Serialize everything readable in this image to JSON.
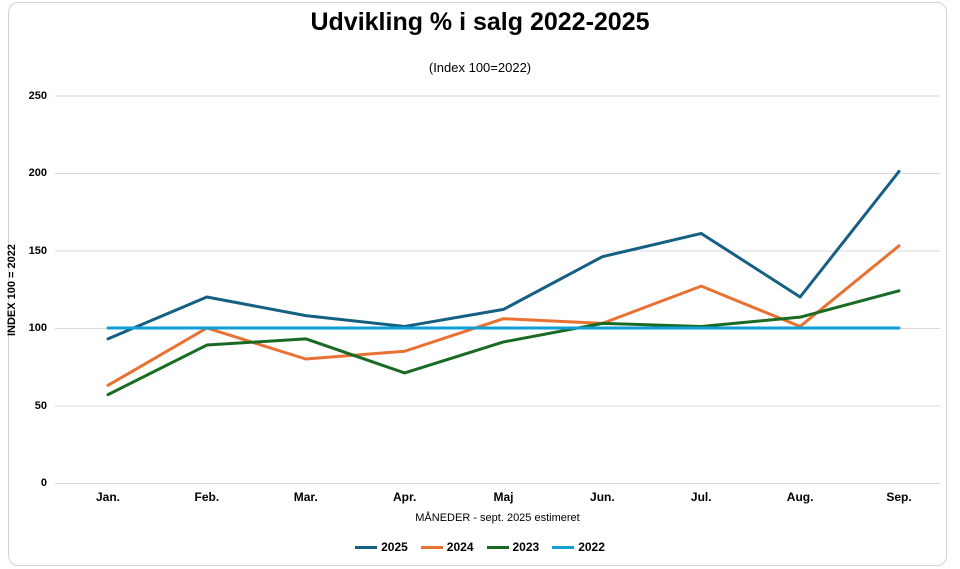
{
  "chart_data": {
    "type": "line",
    "title": "Udvikling % i salg 2022-2025",
    "subtitle": "(Index 100=2022)",
    "xlabel": "MÅNEDER - sept. 2025 estimeret",
    "ylabel": "INDEX 100 = 2022",
    "categories": [
      "Jan.",
      "Feb.",
      "Mar.",
      "Apr.",
      "Maj",
      "Jun.",
      "Jul.",
      "Aug.",
      "Sep."
    ],
    "y_ticks": [
      0,
      50,
      100,
      150,
      200,
      250
    ],
    "ylim": [
      0,
      250
    ],
    "grid": true,
    "legend_position": "bottom",
    "gridline_color": "#d9d9d9",
    "series": [
      {
        "name": "2025",
        "color": "#156082",
        "values": [
          93,
          120,
          108,
          101,
          112,
          146,
          161,
          120,
          201
        ]
      },
      {
        "name": "2024",
        "color": "#E97132",
        "values": [
          63,
          100,
          80,
          85,
          106,
          103,
          127,
          101,
          153
        ]
      },
      {
        "name": "2023",
        "color": "#196B24",
        "values": [
          57,
          89,
          93,
          71,
          91,
          103,
          101,
          107,
          124
        ]
      },
      {
        "name": "2022",
        "color": "#0F9ED5",
        "values": [
          100,
          100,
          100,
          100,
          100,
          100,
          100,
          100,
          100
        ]
      }
    ]
  }
}
